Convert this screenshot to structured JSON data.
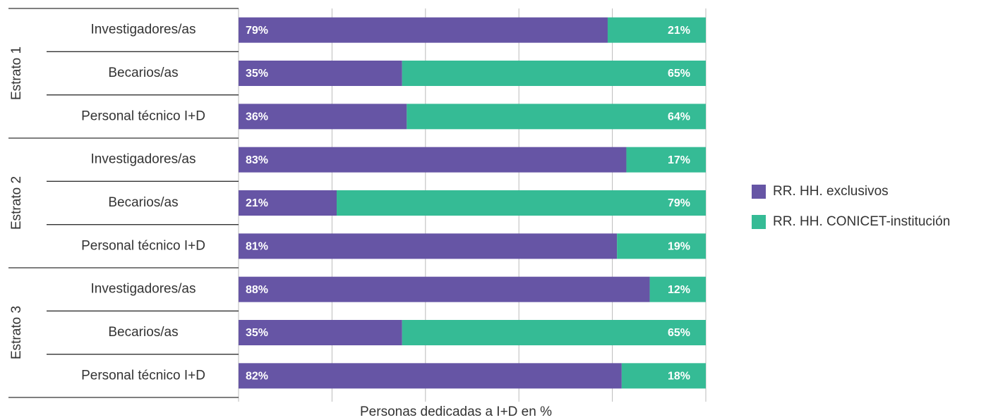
{
  "chart_data": {
    "type": "bar",
    "orientation": "horizontal",
    "stacked": true,
    "groups": [
      "Estrato 1",
      "Estrato 2",
      "Estrato 3"
    ],
    "categories": [
      "Investigadores/as",
      "Becarios/as",
      "Personal técnico I+D",
      "Investigadores/as",
      "Becarios/as",
      "Personal técnico I+D",
      "Investigadores/as",
      "Becarios/as",
      "Personal técnico I+D"
    ],
    "series": [
      {
        "name": "RR. HH. exclusivos",
        "color": "#6655a5",
        "values": [
          79,
          35,
          36,
          83,
          21,
          81,
          88,
          35,
          82
        ],
        "value_labels": [
          "79%",
          "35%",
          "36%",
          "83%",
          "21%",
          "81%",
          "88%",
          "35%",
          "82%"
        ]
      },
      {
        "name": "RR. HH. CONICET-institución",
        "color": "#35bb95",
        "values": [
          21,
          65,
          64,
          17,
          79,
          19,
          12,
          65,
          18
        ],
        "value_labels": [
          "21%",
          "65%",
          "64%",
          "17%",
          "79%",
          "19%",
          "12%",
          "65%",
          "18%"
        ]
      }
    ],
    "xlabel": "Personas dedicadas a I+D en %",
    "xlim": [
      0,
      100
    ],
    "xticks": [
      0,
      20,
      40,
      60,
      80,
      100
    ],
    "grid": true,
    "legend": "right"
  }
}
